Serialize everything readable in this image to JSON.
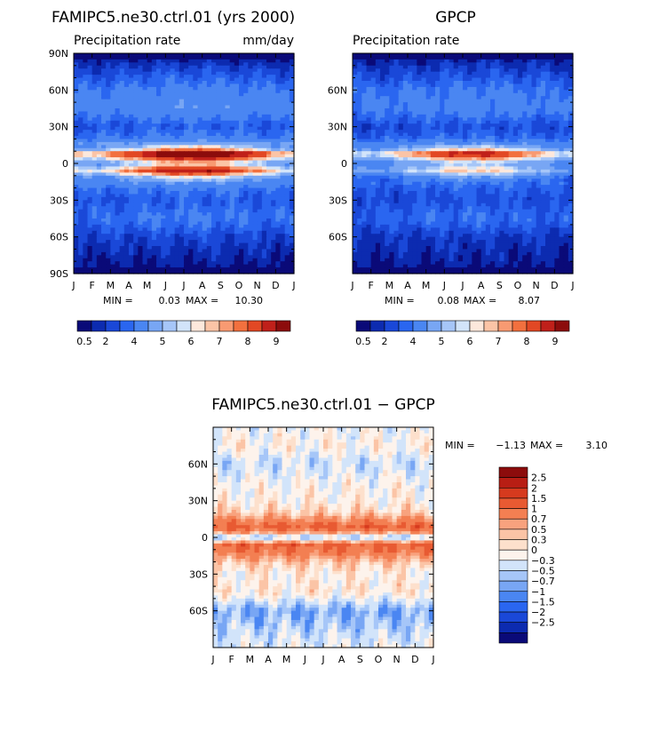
{
  "colors": {
    "precip_scale": [
      "#0a0a78",
      "#0c2bb0",
      "#1a48d8",
      "#2a66f0",
      "#4a86f2",
      "#78a6f4",
      "#a6c6f8",
      "#d2e4fa",
      "#fde8dc",
      "#fbc4a6",
      "#f89a72",
      "#f2703e",
      "#e24824",
      "#c0201a",
      "#8c0c0c"
    ],
    "diff_scale": [
      "#0a0a78",
      "#0c2bb0",
      "#1a48d8",
      "#2a66f0",
      "#4a86f2",
      "#78a6f4",
      "#a6c6f8",
      "#d2e4fa",
      "#fdf3ec",
      "#fde0cc",
      "#fbc4a6",
      "#f8a27e",
      "#f37f52",
      "#e85a32",
      "#d63a1e",
      "#b81e14",
      "#8c0c0c"
    ]
  },
  "chart_data": [
    {
      "type": "heatmap",
      "title": "FAMIPC5.ne30.ctrl.01 (yrs 2000)",
      "subtitle_left": "Precipitation rate",
      "subtitle_right": "mm/day",
      "x_tick_labels": [
        "J",
        "F",
        "M",
        "A",
        "M",
        "J",
        "J",
        "A",
        "S",
        "O",
        "N",
        "D",
        "J"
      ],
      "y_tick_labels": [
        "90N",
        "60N",
        "30N",
        "0",
        "30S",
        "60S",
        "90S"
      ],
      "x_range": [
        1,
        13
      ],
      "y_range": [
        90,
        -90
      ],
      "min_text": "MIN =",
      "min_value": "0.03",
      "max_text": "MAX =",
      "max_value": "10.30",
      "colorbar_labels": [
        "0.5",
        "2",
        "4",
        "5",
        "6",
        "7",
        "8",
        "9"
      ],
      "field": {
        "y": [
          -90,
          -60,
          -45,
          -30,
          -20,
          -12,
          -6,
          0,
          4,
          8,
          12,
          20,
          30,
          45,
          60,
          75,
          90
        ],
        "values": [
          0.2,
          1.2,
          2.0,
          1.5,
          2.0,
          3.5,
          7.0,
          4.0,
          6.5,
          8.8,
          4.5,
          2.2,
          1.5,
          2.6,
          2.2,
          1.3,
          0.2
        ],
        "peak_month": 7.5
      }
    },
    {
      "type": "heatmap",
      "title": "GPCP",
      "subtitle_left": "Precipitation rate",
      "x_tick_labels": [
        "J",
        "F",
        "M",
        "A",
        "M",
        "J",
        "J",
        "A",
        "S",
        "O",
        "N",
        "D",
        "J"
      ],
      "y_tick_labels": [
        "60N",
        "30N",
        "0",
        "30S",
        "60S"
      ],
      "x_range": [
        1,
        13
      ],
      "y_range": [
        90,
        -90
      ],
      "min_text": "MIN =",
      "min_value": "0.08",
      "max_text": "MAX =",
      "max_value": "8.07",
      "colorbar_labels": [
        "0.5",
        "2",
        "4",
        "5",
        "6",
        "7",
        "8",
        "9"
      ],
      "field": {
        "y": [
          -90,
          -60,
          -45,
          -30,
          -20,
          -12,
          -6,
          0,
          4,
          8,
          12,
          20,
          30,
          45,
          60,
          75,
          90
        ],
        "values": [
          0.3,
          1.0,
          1.8,
          1.3,
          1.6,
          2.2,
          4.5,
          3.2,
          5.0,
          7.0,
          3.8,
          1.8,
          1.3,
          2.3,
          2.0,
          1.2,
          0.3
        ],
        "peak_month": 7.5
      }
    },
    {
      "type": "heatmap",
      "title": "FAMIPC5.ne30.ctrl.01 − GPCP",
      "x_tick_labels": [
        "J",
        "F",
        "M",
        "A",
        "M",
        "J",
        "J",
        "A",
        "S",
        "O",
        "N",
        "D",
        "J"
      ],
      "y_tick_labels": [
        "60N",
        "30N",
        "0",
        "30S",
        "60S"
      ],
      "x_range": [
        1,
        13
      ],
      "y_range": [
        90,
        -90
      ],
      "min_text": "MIN =",
      "min_value": "−1.13",
      "max_text": "MAX =",
      "max_value": "3.10",
      "colorbar_labels": [
        "2.5",
        "2",
        "1.5",
        "1",
        "0.7",
        "0.5",
        "0.3",
        "0",
        "−0.3",
        "−0.5",
        "−0.7",
        "−1",
        "−1.5",
        "−2",
        "−2.5"
      ],
      "field": {
        "y": [
          -90,
          -60,
          -45,
          -30,
          -20,
          -12,
          -6,
          0,
          4,
          8,
          12,
          20,
          30,
          45,
          60,
          75,
          90
        ],
        "values": [
          0.0,
          -0.6,
          0.3,
          0.2,
          0.6,
          1.3,
          1.6,
          -0.5,
          0.9,
          1.7,
          1.3,
          0.5,
          0.2,
          0.1,
          -0.2,
          0.2,
          0.0
        ]
      }
    }
  ]
}
